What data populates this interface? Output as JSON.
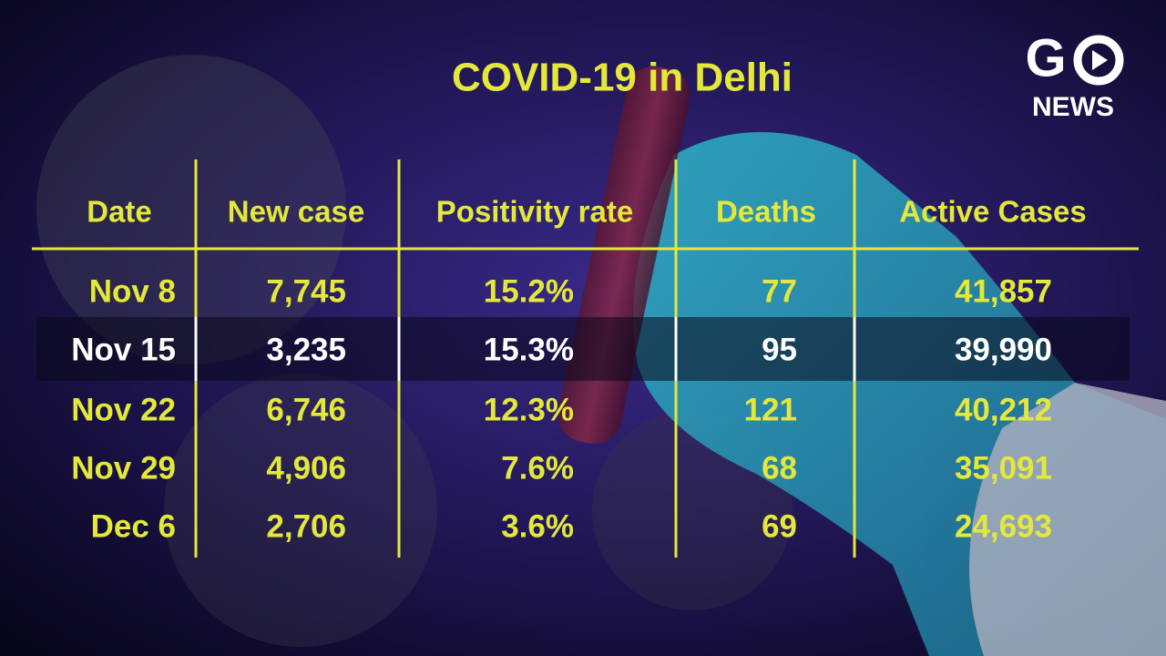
{
  "title": "COVID-19 in Delhi",
  "logo": {
    "mark": "G",
    "label": "NEWS"
  },
  "table": {
    "header": [
      "Date",
      "New case",
      "Positivity rate",
      "Deaths",
      "Active Cases"
    ],
    "rows": [
      [
        "Nov 8",
        "7,745",
        "15.2%",
        "77",
        "41,857"
      ],
      [
        "Nov 15",
        "3,235",
        "15.3%",
        "95",
        "39,990"
      ],
      [
        "Nov 22",
        "6,746",
        "12.3%",
        "121",
        "40,212"
      ],
      [
        "Nov 29",
        "4,906",
        "7.6%",
        "68",
        "35,091"
      ],
      [
        "Dec 6",
        "2,706",
        "3.6%",
        "69",
        "24,693"
      ]
    ]
  }
}
